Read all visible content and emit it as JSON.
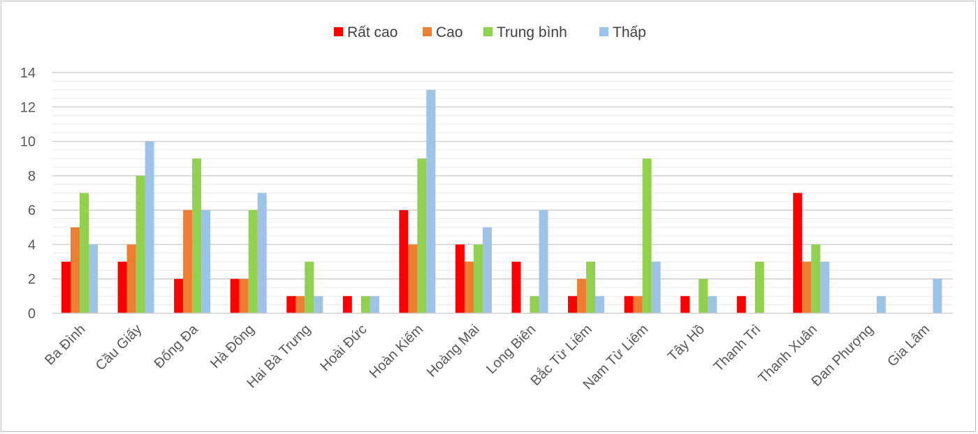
{
  "chart_data": {
    "type": "bar",
    "title": "",
    "xlabel": "",
    "ylabel": "",
    "ylim": [
      0,
      14
    ],
    "y_ticks": [
      0,
      2,
      4,
      6,
      8,
      10,
      12,
      14
    ],
    "grid": true,
    "legend_position": "top",
    "categories": [
      "Ba Đình",
      "Cầu Giấy",
      "Đống Đa",
      "Hà Đông",
      "Hai Bà Trưng",
      "Hoài Đức",
      "Hoàn Kiếm",
      "Hoàng Mai",
      "Long Biên",
      "Bắc Từ Liêm",
      "Nam Từ Liêm",
      "Tây Hồ",
      "Thanh Trì",
      "Thanh Xuân",
      "Đan Phượng",
      "Gia Lâm"
    ],
    "series": [
      {
        "name": "Rất cao",
        "color": "#ff0000",
        "values": [
          3,
          3,
          2,
          2,
          1,
          1,
          6,
          4,
          3,
          1,
          1,
          1,
          1,
          7,
          0,
          0
        ]
      },
      {
        "name": "Cao",
        "color": "#ed7d31",
        "values": [
          5,
          4,
          6,
          2,
          1,
          0,
          4,
          3,
          0,
          2,
          1,
          0,
          0,
          3,
          0,
          0
        ]
      },
      {
        "name": "Trung bình",
        "color": "#92d050",
        "values": [
          7,
          8,
          9,
          6,
          3,
          1,
          9,
          4,
          1,
          3,
          9,
          2,
          3,
          4,
          0,
          0
        ]
      },
      {
        "name": "Thấp",
        "color": "#9dc3e6",
        "values": [
          4,
          10,
          6,
          7,
          1,
          1,
          13,
          5,
          6,
          1,
          3,
          1,
          0,
          3,
          1,
          2
        ]
      }
    ]
  }
}
